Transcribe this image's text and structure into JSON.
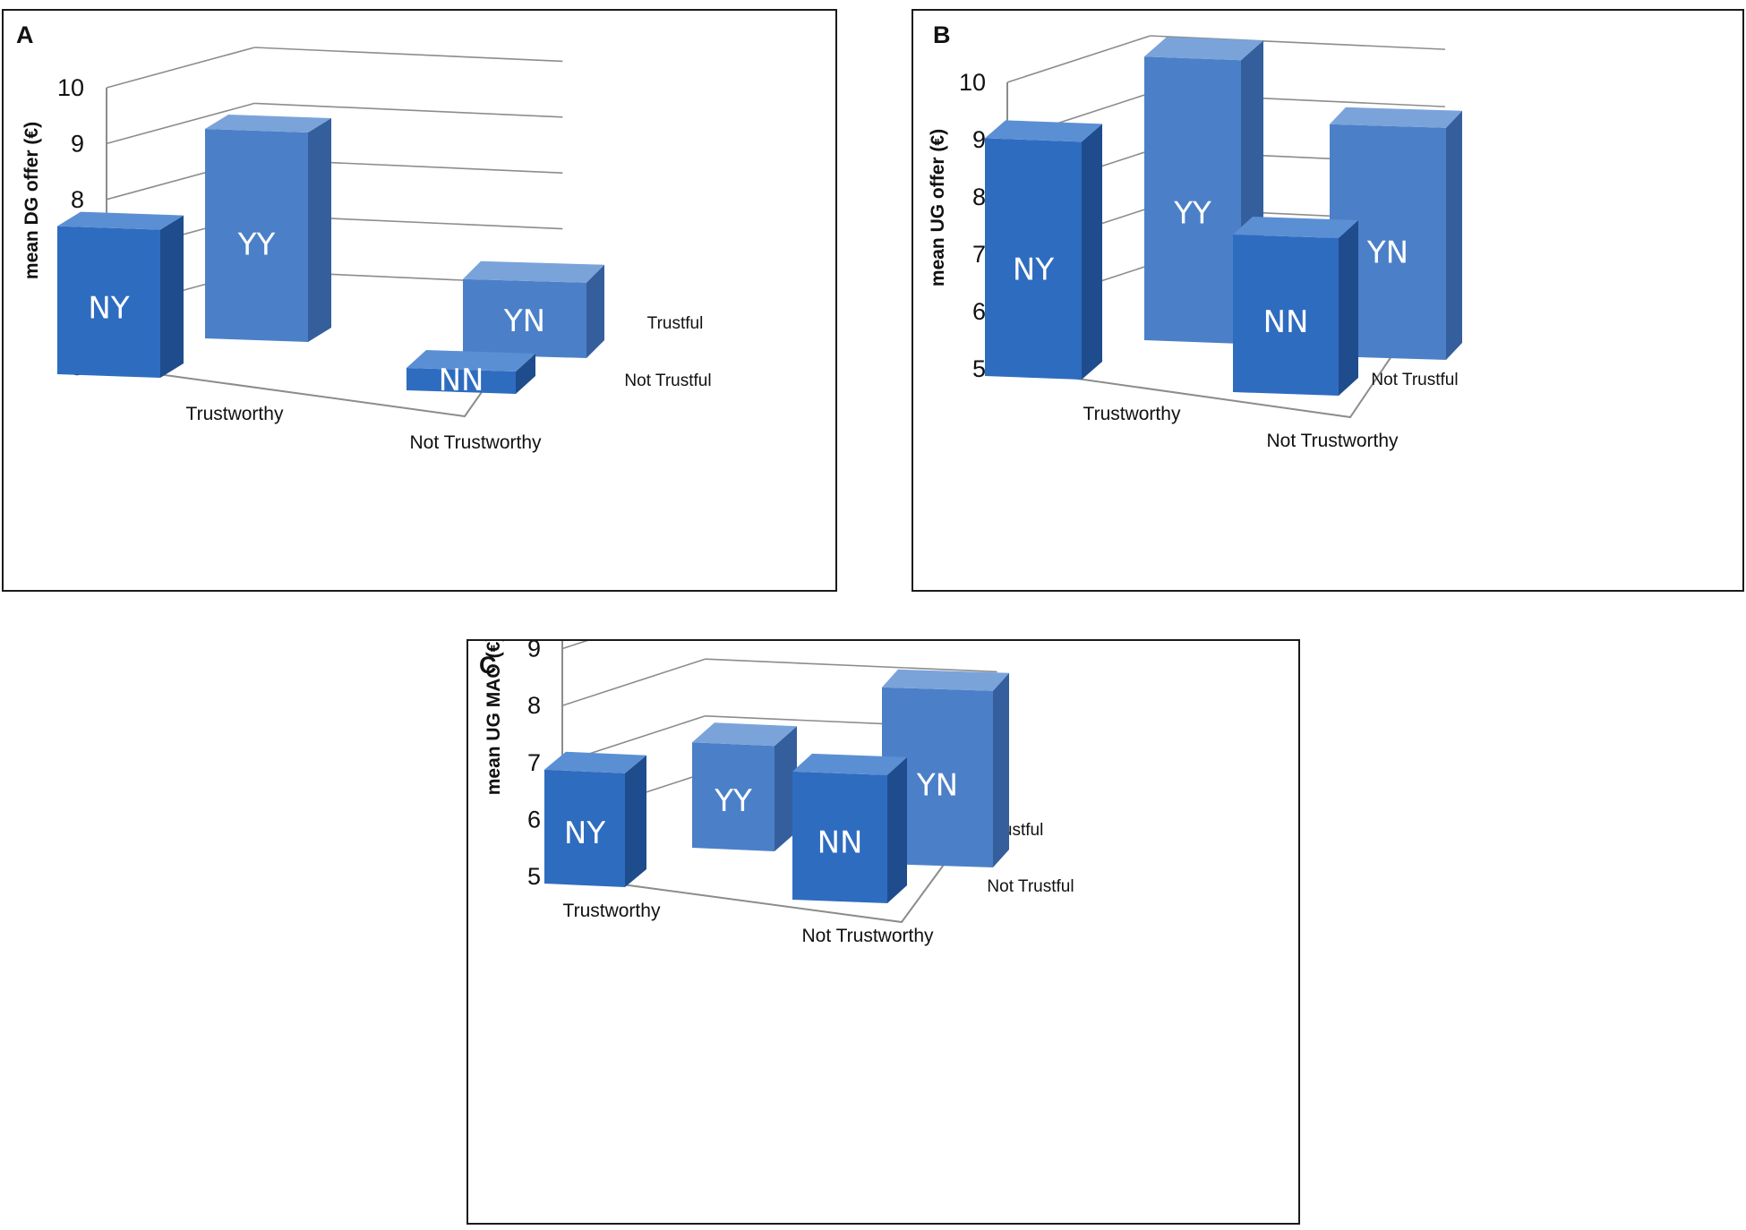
{
  "colors": {
    "grid": "#8c8c8c",
    "dark_front": "#2e6cc0",
    "dark_side": "#1f4c8d",
    "dark_top": "#5b8fd4",
    "light_front": "#4b80c8",
    "light_side": "#345f9c",
    "light_top": "#7aa3da"
  },
  "chart_data": [
    {
      "panel": "A",
      "type": "bar",
      "ylabel": "mean DG offer (€)",
      "ylim": [
        5,
        10
      ],
      "yticks": [
        "5",
        "6",
        "7",
        "8",
        "9",
        "10"
      ],
      "categories": [
        "Trustworthy",
        "Not Trustworthy"
      ],
      "depth_categories": [
        "Not Trustful",
        "Trustful"
      ],
      "bars": [
        {
          "label": "NY",
          "category": "Trustworthy",
          "depth": "Not Trustful",
          "value": 7.65
        },
        {
          "label": "YY",
          "category": "Trustworthy",
          "depth": "Trustful",
          "value": 8.75
        },
        {
          "label": "NN",
          "category": "Not Trustworthy",
          "depth": "Not Trustful",
          "value": 5.4
        },
        {
          "label": "YN",
          "category": "Not Trustworthy",
          "depth": "Trustful",
          "value": 6.35
        }
      ]
    },
    {
      "panel": "B",
      "type": "bar",
      "ylabel": "mean UG offer (€)",
      "ylim": [
        5,
        10
      ],
      "yticks": [
        "5",
        "6",
        "7",
        "8",
        "9",
        "10"
      ],
      "categories": [
        "Trustworthy",
        "Not Trustworthy"
      ],
      "depth_categories": [
        "Not Trustful",
        "Trustful"
      ],
      "bars": [
        {
          "label": "NY",
          "category": "Trustworthy",
          "depth": "Not Trustful",
          "value": 9.15
        },
        {
          "label": "YY",
          "category": "Trustworthy",
          "depth": "Trustful",
          "value": 9.95
        },
        {
          "label": "NN",
          "category": "Not Trustworthy",
          "depth": "Not Trustful",
          "value": 7.75
        },
        {
          "label": "YN",
          "category": "Not Trustworthy",
          "depth": "Trustful",
          "value": 9.05
        }
      ]
    },
    {
      "panel": "C",
      "type": "bar",
      "ylabel": "mean UG MAO (€)",
      "ylim": [
        5,
        10
      ],
      "yticks": [
        "5",
        "6",
        "7",
        "8",
        "9",
        "10"
      ],
      "categories": [
        "Trustworthy",
        "Not Trustworthy"
      ],
      "depth_categories": [
        "Not Trustful",
        "Trustful"
      ],
      "bars": [
        {
          "label": "NY",
          "category": "Trustworthy",
          "depth": "Not Trustful",
          "value": 7.0
        },
        {
          "label": "YY",
          "category": "Trustworthy",
          "depth": "Trustful",
          "value": 6.85
        },
        {
          "label": "NN",
          "category": "Not Trustworthy",
          "depth": "Not Trustful",
          "value": 7.25
        },
        {
          "label": "YN",
          "category": "Not Trustworthy",
          "depth": "Trustful",
          "value": 8.1
        }
      ]
    }
  ]
}
